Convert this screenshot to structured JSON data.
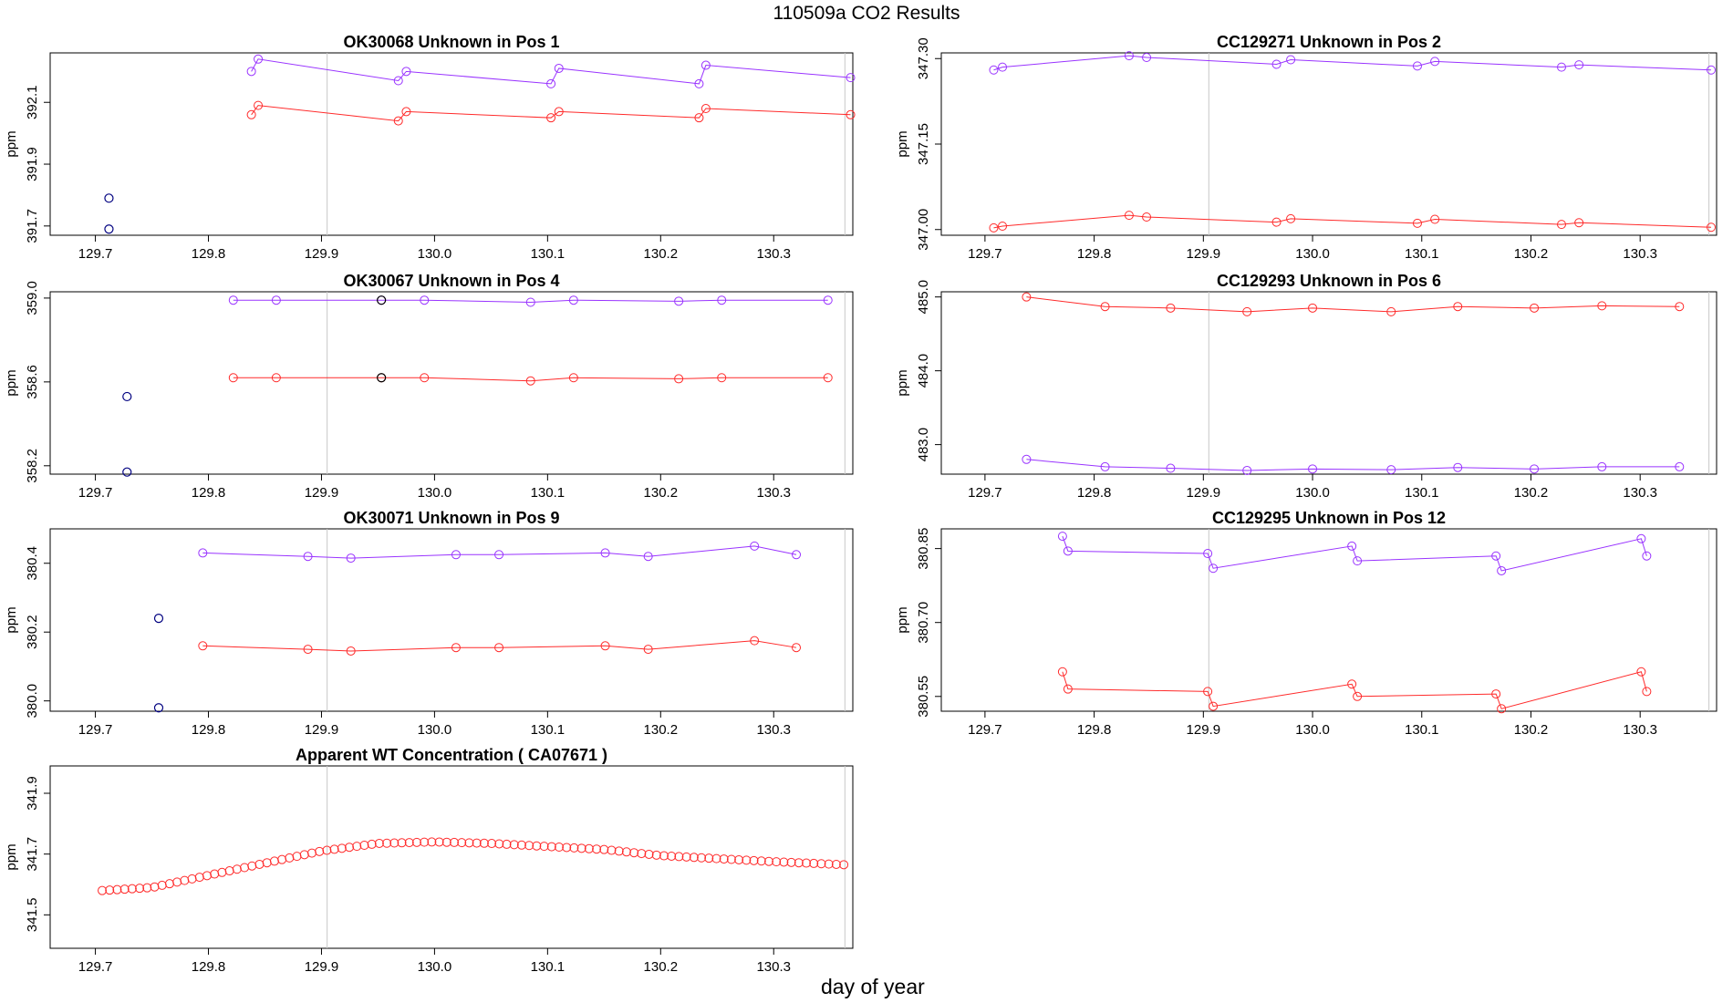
{
  "title": "110509a  CO2 Results",
  "xlabel": "day of year",
  "colors": {
    "series_a": "#9933ff",
    "series_b": "#ff2a2a",
    "vline": "#c8c8c8",
    "highlight": "#000080"
  },
  "chart_data": [
    {
      "type": "line",
      "title": "OK30068    Unknown in Pos 1",
      "ylabel": "ppm",
      "xlim": [
        129.66,
        130.37
      ],
      "ylim": [
        391.67,
        392.26
      ],
      "xticks": [
        "129.7",
        "129.8",
        "129.9",
        "130.0",
        "130.1",
        "130.2",
        "130.3"
      ],
      "yticks": [
        "391.7",
        "391.9",
        "392.1"
      ],
      "vlines": [
        129.905,
        130.363
      ],
      "series": [
        {
          "values_x": [
            129.838,
            129.844,
            129.968,
            129.975,
            130.103,
            130.11,
            130.234,
            130.24,
            130.368
          ],
          "values_y": [
            392.2,
            392.24,
            392.17,
            392.2,
            392.16,
            392.21,
            392.16,
            392.22,
            392.18
          ]
        },
        {
          "values_x": [
            129.838,
            129.844,
            129.968,
            129.975,
            130.103,
            130.11,
            130.234,
            130.24,
            130.368
          ],
          "values_y": [
            392.06,
            392.09,
            392.04,
            392.07,
            392.05,
            392.07,
            392.05,
            392.08,
            392.06
          ]
        }
      ],
      "isolated_points": [
        {
          "x": 129.712,
          "y": 391.79
        },
        {
          "x": 129.712,
          "y": 391.69
        }
      ]
    },
    {
      "type": "line",
      "title": "CC129271    Unknown in Pos 2",
      "ylabel": "ppm",
      "xlim": [
        129.66,
        130.37
      ],
      "ylim": [
        346.99,
        347.31
      ],
      "xticks": [
        "129.7",
        "129.8",
        "129.9",
        "130.0",
        "130.1",
        "130.2",
        "130.3"
      ],
      "yticks": [
        "347.00",
        "347.15",
        "347.30"
      ],
      "vlines": [
        129.905,
        130.363
      ],
      "series": [
        {
          "values_x": [
            129.708,
            129.716,
            129.832,
            129.848,
            129.967,
            129.98,
            130.096,
            130.112,
            130.228,
            130.244,
            130.365
          ],
          "values_y": [
            347.28,
            347.285,
            347.305,
            347.302,
            347.29,
            347.298,
            347.287,
            347.295,
            347.285,
            347.289,
            347.28
          ]
        },
        {
          "values_x": [
            129.708,
            129.716,
            129.832,
            129.848,
            129.967,
            129.98,
            130.096,
            130.112,
            130.228,
            130.244,
            130.365
          ],
          "values_y": [
            347.003,
            347.006,
            347.025,
            347.022,
            347.013,
            347.019,
            347.011,
            347.018,
            347.009,
            347.012,
            347.004
          ]
        }
      ]
    },
    {
      "type": "line",
      "title": "OK30067    Unknown in Pos 4",
      "ylabel": "ppm",
      "xlim": [
        129.66,
        130.37
      ],
      "ylim": [
        358.16,
        359.03
      ],
      "xticks": [
        "129.7",
        "129.8",
        "129.9",
        "130.0",
        "130.1",
        "130.2",
        "130.3"
      ],
      "yticks": [
        "358.2",
        "358.6",
        "359.0"
      ],
      "vlines": [
        129.905,
        130.363
      ],
      "series": [
        {
          "values_x": [
            129.822,
            129.86,
            129.953,
            129.991,
            130.085,
            130.123,
            130.216,
            130.254,
            130.348
          ],
          "values_y": [
            358.99,
            358.99,
            358.99,
            358.99,
            358.98,
            358.99,
            358.985,
            358.99,
            358.99
          ]
        },
        {
          "values_x": [
            129.822,
            129.86,
            129.953,
            129.991,
            130.085,
            130.123,
            130.216,
            130.254,
            130.348
          ],
          "values_y": [
            358.62,
            358.62,
            358.62,
            358.62,
            358.605,
            358.62,
            358.615,
            358.62,
            358.62
          ]
        }
      ],
      "isolated_points": [
        {
          "x": 129.728,
          "y": 358.53
        },
        {
          "x": 129.728,
          "y": 358.17
        }
      ],
      "highlight_x": 129.953
    },
    {
      "type": "line",
      "title": "CC129293    Unknown in Pos 6",
      "ylabel": "ppm",
      "xlim": [
        129.66,
        130.37
      ],
      "ylim": [
        482.6,
        485.07
      ],
      "xticks": [
        "129.7",
        "129.8",
        "129.9",
        "130.0",
        "130.1",
        "130.2",
        "130.3"
      ],
      "yticks": [
        "483.0",
        "484.0",
        "485.0"
      ],
      "vlines": [
        129.905,
        130.363
      ],
      "series": [
        {
          "values_x": [
            129.738,
            129.81,
            129.87,
            129.94,
            130.0,
            130.072,
            130.133,
            130.203,
            130.265,
            130.336
          ],
          "values_y": [
            482.8,
            482.7,
            482.68,
            482.65,
            482.67,
            482.66,
            482.69,
            482.67,
            482.7,
            482.7
          ]
        },
        {
          "values_x": [
            129.738,
            129.81,
            129.87,
            129.94,
            130.0,
            130.072,
            130.133,
            130.203,
            130.265,
            130.336
          ],
          "values_y": [
            485.0,
            484.87,
            484.85,
            484.8,
            484.85,
            484.8,
            484.87,
            484.85,
            484.88,
            484.87
          ]
        }
      ]
    },
    {
      "type": "line",
      "title": "OK30071    Unknown in Pos 9",
      "ylabel": "ppm",
      "xlim": [
        129.66,
        130.37
      ],
      "ylim": [
        379.97,
        380.5
      ],
      "xticks": [
        "129.7",
        "129.8",
        "129.9",
        "130.0",
        "130.1",
        "130.2",
        "130.3"
      ],
      "yticks": [
        "380.0",
        "380.2",
        "380.4"
      ],
      "vlines": [
        129.905,
        130.363
      ],
      "series": [
        {
          "values_x": [
            129.795,
            129.888,
            129.926,
            130.019,
            130.057,
            130.151,
            130.189,
            130.283,
            130.32
          ],
          "values_y": [
            380.43,
            380.42,
            380.415,
            380.425,
            380.425,
            380.43,
            380.42,
            380.45,
            380.425
          ]
        },
        {
          "values_x": [
            129.795,
            129.888,
            129.926,
            130.019,
            130.057,
            130.151,
            130.189,
            130.283,
            130.32
          ],
          "values_y": [
            380.16,
            380.15,
            380.145,
            380.155,
            380.155,
            380.16,
            380.15,
            380.175,
            380.155
          ]
        }
      ],
      "isolated_points": [
        {
          "x": 129.756,
          "y": 380.24
        },
        {
          "x": 129.756,
          "y": 379.98
        }
      ]
    },
    {
      "type": "line",
      "title": "CC129295    Unknown in Pos 12",
      "ylabel": "ppm",
      "xlim": [
        129.66,
        130.37
      ],
      "ylim": [
        380.52,
        380.89
      ],
      "xticks": [
        "129.7",
        "129.8",
        "129.9",
        "130.0",
        "130.1",
        "130.2",
        "130.3"
      ],
      "yticks": [
        "380.55",
        "380.70",
        "380.85"
      ],
      "vlines": [
        129.905,
        130.363
      ],
      "series": [
        {
          "values_x": [
            129.771,
            129.776,
            129.904,
            129.909,
            130.036,
            130.041,
            130.168,
            130.173,
            130.301,
            130.306
          ],
          "values_y": [
            380.875,
            380.845,
            380.84,
            380.81,
            380.855,
            380.825,
            380.835,
            380.805,
            380.87,
            380.835
          ]
        },
        {
          "values_x": [
            129.771,
            129.776,
            129.904,
            129.909,
            130.036,
            130.041,
            130.168,
            130.173,
            130.301,
            130.306
          ],
          "values_y": [
            380.6,
            380.565,
            380.56,
            380.53,
            380.575,
            380.55,
            380.555,
            380.525,
            380.6,
            380.56
          ]
        }
      ]
    },
    {
      "type": "scatter",
      "title": "Apparent WT Concentration ( CA07671 )",
      "ylabel": "ppm",
      "xlim": [
        129.66,
        130.37
      ],
      "ylim": [
        341.39,
        341.99
      ],
      "xticks": [
        "129.7",
        "129.8",
        "129.9",
        "130.0",
        "130.1",
        "130.2",
        "130.3"
      ],
      "yticks": [
        "341.5",
        "341.7",
        "341.9"
      ],
      "vlines": [
        129.905,
        130.363
      ],
      "curve_points": [
        [
          129.706,
          341.58
        ],
        [
          129.75,
          341.59
        ],
        [
          129.8,
          341.63
        ],
        [
          129.85,
          341.67
        ],
        [
          129.9,
          341.71
        ],
        [
          129.95,
          341.735
        ],
        [
          130.0,
          341.74
        ],
        [
          130.05,
          341.735
        ],
        [
          130.1,
          341.725
        ],
        [
          130.15,
          341.715
        ],
        [
          130.2,
          341.695
        ],
        [
          130.25,
          341.685
        ],
        [
          130.3,
          341.675
        ],
        [
          130.362,
          341.665
        ]
      ]
    }
  ]
}
